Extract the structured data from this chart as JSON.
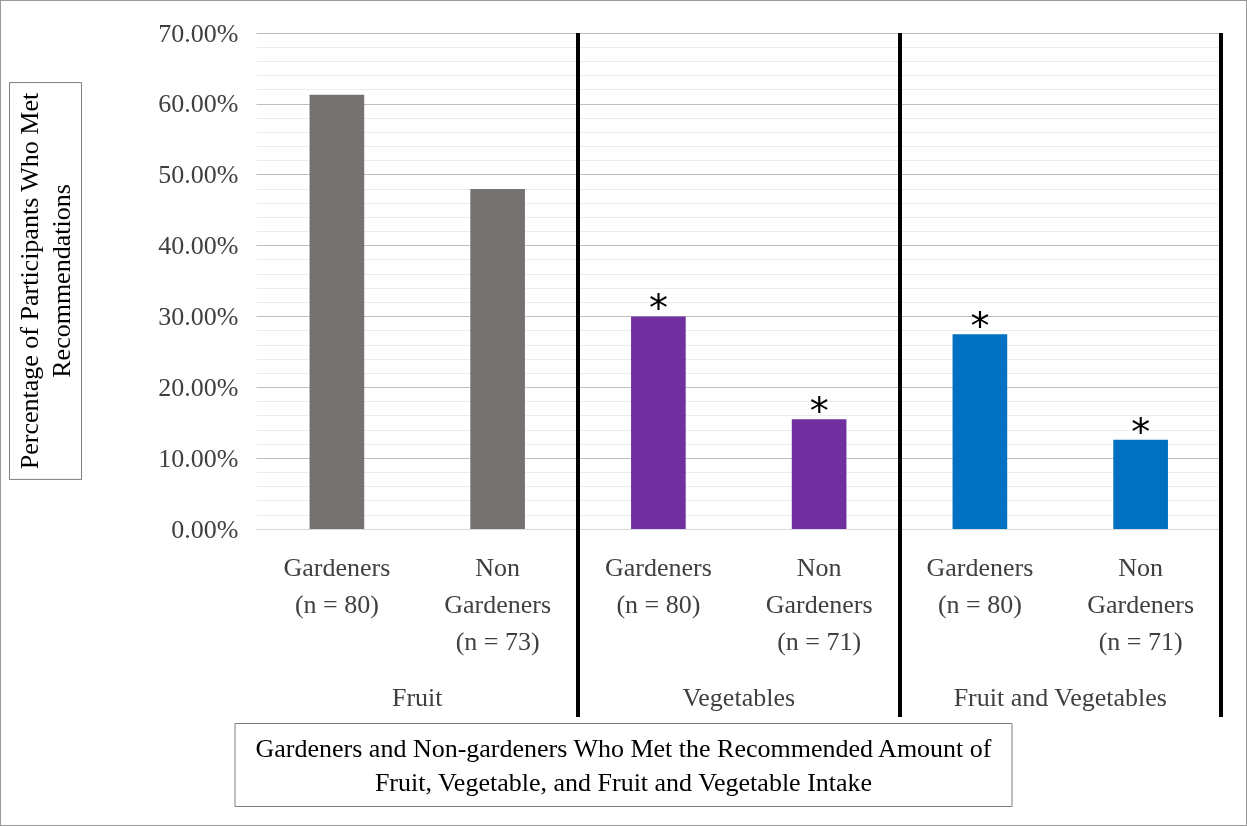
{
  "chart_data": {
    "type": "bar",
    "title": "Gardeners and Non-gardeners Who Met the Recommended Amount of\nFruit, Vegetable, and Fruit and Vegetable Intake",
    "ylabel": "Percentage of Participants Who Met\nRecommendations",
    "categories": [
      "Gardeners\n(n = 80)",
      "Non\nGardeners\n(n = 73)",
      "Gardeners\n(n = 80)",
      "Non\nGardeners\n(n = 71)",
      "Gardeners\n(n = 80)",
      "Non\nGardeners\n(n = 71)"
    ],
    "values": [
      61.3,
      48.0,
      30.0,
      15.5,
      27.5,
      12.6
    ],
    "colors": [
      "#767171",
      "#767171",
      "#7030a0",
      "#7030a0",
      "#0070c0",
      "#0070c0"
    ],
    "value_labels": [
      null,
      null,
      "*",
      "*",
      "*",
      "*"
    ],
    "annotations": [
      "Fruit",
      "Vegetables",
      "Fruit and Vegetables"
    ],
    "ylim": [
      0,
      70
    ],
    "yticks": [
      {
        "value": 0,
        "label": "0.00%"
      },
      {
        "value": 10,
        "label": "10.00%"
      },
      {
        "value": 20,
        "label": "20.00%"
      },
      {
        "value": 30,
        "label": "30.00%"
      },
      {
        "value": 40,
        "label": "40.00%"
      },
      {
        "value": 50,
        "label": "50.00%"
      },
      {
        "value": 60,
        "label": "60.00%"
      },
      {
        "value": 70,
        "label": "70.00%"
      }
    ],
    "grid": "y"
  }
}
